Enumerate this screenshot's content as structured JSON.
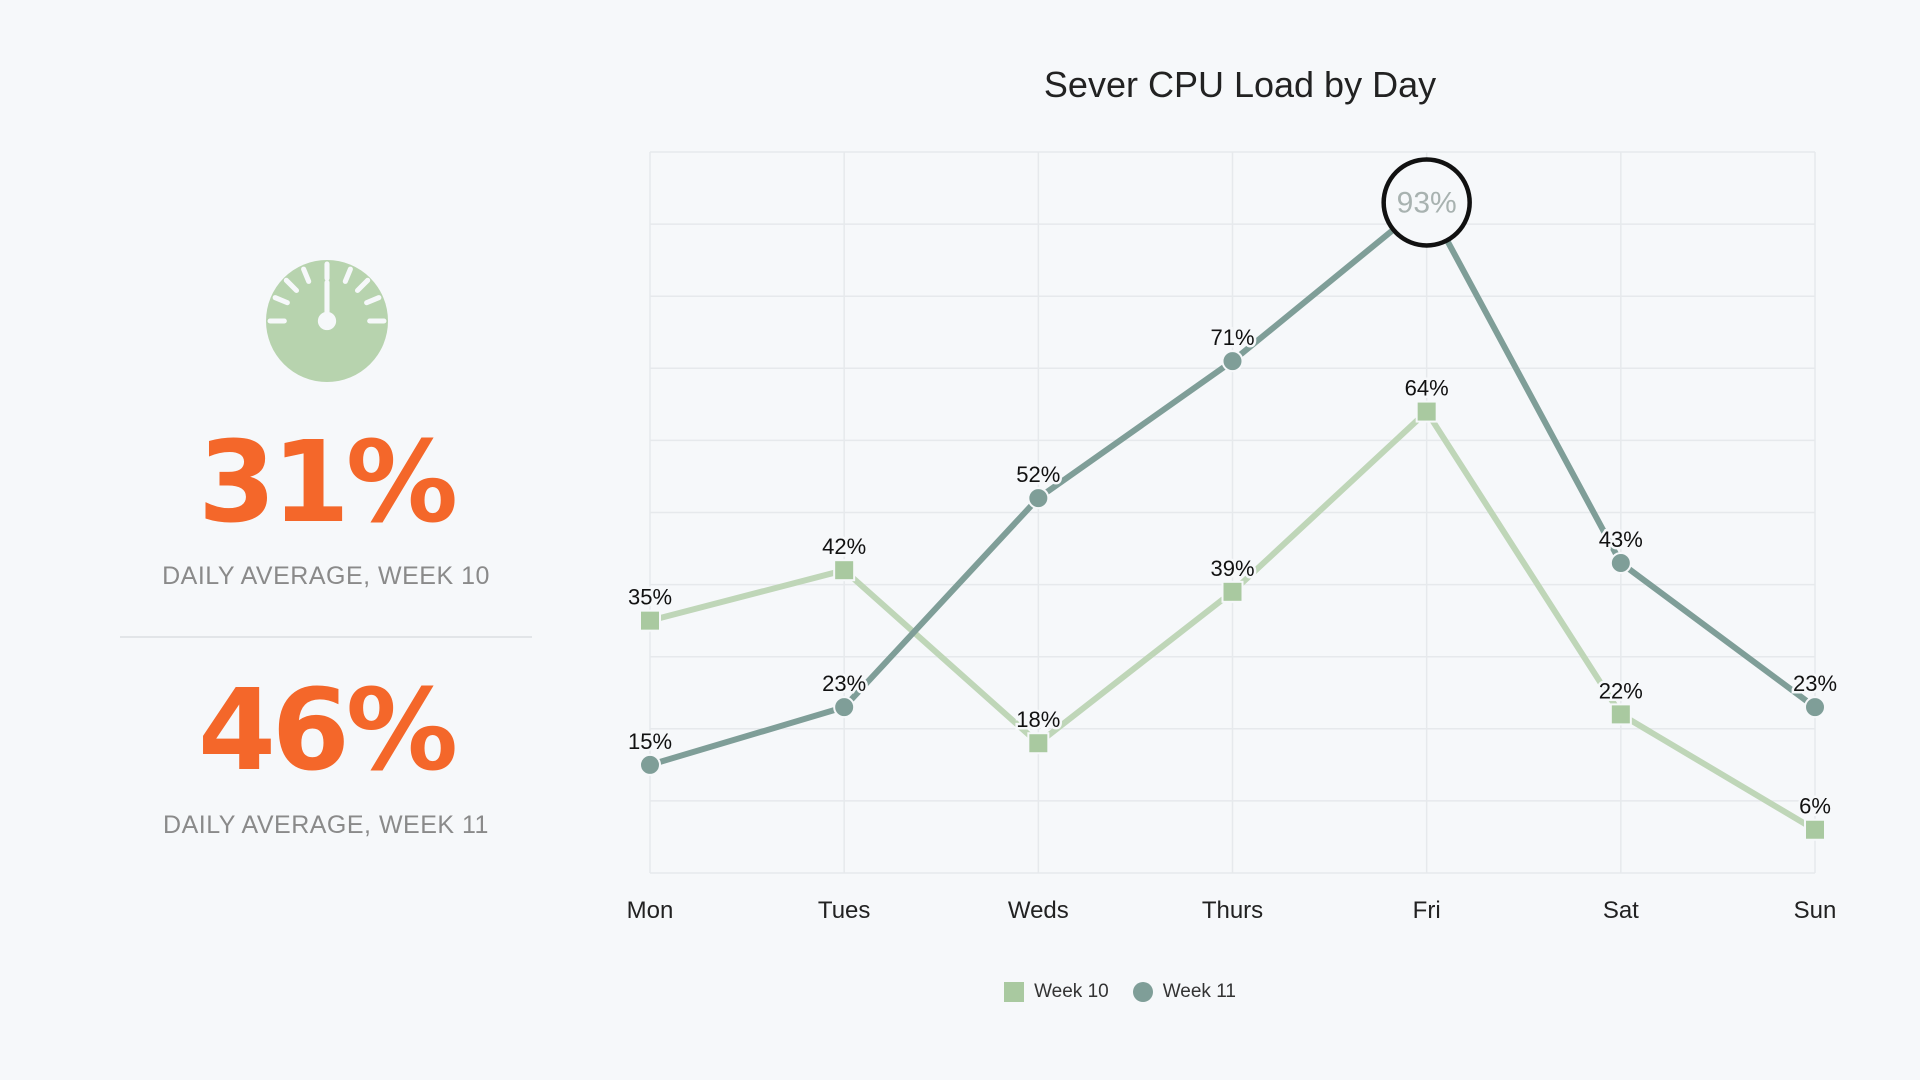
{
  "summary": {
    "icon": "speedometer-icon",
    "week10": {
      "value": "31%",
      "label": "DAILY AVERAGE, WEEK 10"
    },
    "week11": {
      "value": "46%",
      "label": "DAILY AVERAGE, WEEK 11"
    }
  },
  "colors": {
    "accent": "#f4672a",
    "week10": "#a9c9a0",
    "week10_line": "#bfd6b8",
    "week11": "#7f9e98",
    "gauge": "#b7d3ae"
  },
  "chart_data": {
    "type": "line",
    "title": "Sever CPU Load by Day",
    "categories": [
      "Mon",
      "Tues",
      "Weds",
      "Thurs",
      "Fri",
      "Sat",
      "Sun"
    ],
    "ylim": [
      0,
      100
    ],
    "grid": true,
    "series": [
      {
        "name": "Week 10",
        "marker": "square",
        "values": [
          35,
          42,
          18,
          39,
          64,
          22,
          6
        ],
        "labels": [
          "35%",
          "42%",
          "18%",
          "39%",
          "64%",
          "22%",
          "6%"
        ]
      },
      {
        "name": "Week 11",
        "marker": "circle",
        "values": [
          15,
          23,
          52,
          71,
          93,
          43,
          23
        ],
        "labels": [
          "15%",
          "23%",
          "52%",
          "71%",
          "93%",
          "43%",
          "23%"
        ]
      }
    ],
    "highlight": {
      "series": "Week 11",
      "category": "Fri",
      "label": "93%"
    },
    "legend": [
      "Week 10",
      "Week 11"
    ],
    "legend_position": "bottom-center"
  }
}
